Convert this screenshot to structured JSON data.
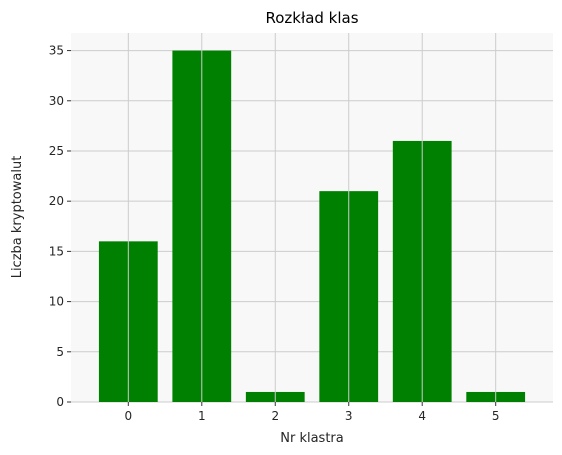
{
  "chart_data": {
    "type": "bar",
    "title": "Rozkład klas",
    "xlabel": "Nr klastra",
    "ylabel": "Liczba kryptowalut",
    "categories": [
      "0",
      "1",
      "2",
      "3",
      "4",
      "5"
    ],
    "values": [
      16,
      35,
      1,
      21,
      26,
      1
    ],
    "ylim": [
      0,
      36.75
    ],
    "yticks": [
      0,
      5,
      10,
      15,
      20,
      25,
      30,
      35
    ],
    "grid": true,
    "bar_color": "#008000",
    "background_color": "#f8f8f8",
    "grid_color": "#cccccc"
  }
}
